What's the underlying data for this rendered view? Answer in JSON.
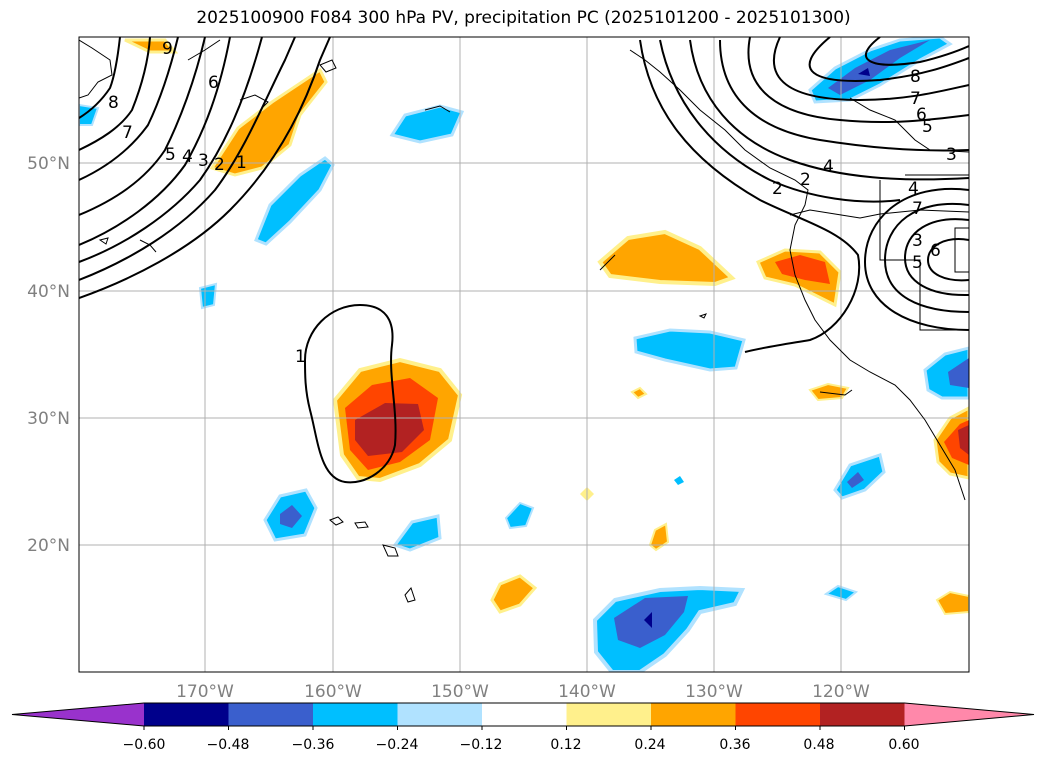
{
  "title": "2025100900 F084 300 hPa PV, precipitation PC (2025101200 - 2025101300)",
  "map": {
    "lat_range": [
      10,
      60
    ],
    "lon_range": [
      -180,
      -110
    ],
    "lat_ticks": [
      {
        "value": 50,
        "label": "50°N"
      },
      {
        "value": 40,
        "label": "40°N"
      },
      {
        "value": 30,
        "label": "30°N"
      },
      {
        "value": 20,
        "label": "20°N"
      }
    ],
    "lon_ticks": [
      {
        "value": -170,
        "label": "170°W"
      },
      {
        "value": -160,
        "label": "160°W"
      },
      {
        "value": -150,
        "label": "150°W"
      },
      {
        "value": -140,
        "label": "140°W"
      },
      {
        "value": -130,
        "label": "130°W"
      },
      {
        "value": -120,
        "label": "120°W"
      }
    ],
    "contour_labels": [
      "9",
      "8",
      "7",
      "6",
      "5",
      "4",
      "3",
      "2",
      "1",
      "1",
      "2",
      "3",
      "4",
      "5",
      "6",
      "7",
      "8",
      "2",
      "3",
      "4",
      "5",
      "6",
      "7"
    ]
  },
  "colorbar": {
    "colors": [
      "#9932cc",
      "#00008b",
      "#3a5fcd",
      "#00bfff",
      "#b0e2ff",
      "#ffffff",
      "#fff08c",
      "#ffa500",
      "#ff4500",
      "#b22222",
      "#ff88aa"
    ],
    "tick_labels": [
      "−0.60",
      "−0.48",
      "−0.36",
      "−0.24",
      "−0.12",
      "0.12",
      "0.24",
      "0.36",
      "0.48",
      "0.60"
    ]
  }
}
